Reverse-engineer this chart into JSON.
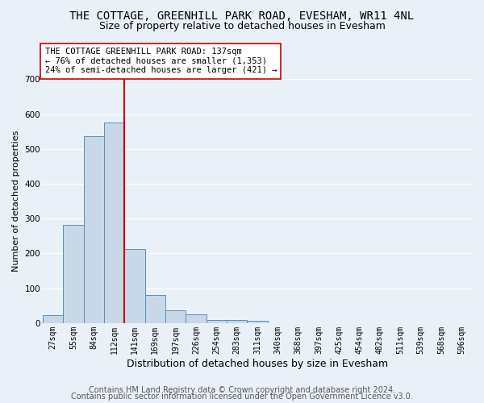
{
  "title": "THE COTTAGE, GREENHILL PARK ROAD, EVESHAM, WR11 4NL",
  "subtitle": "Size of property relative to detached houses in Evesham",
  "xlabel": "Distribution of detached houses by size in Evesham",
  "ylabel": "Number of detached properties",
  "bar_labels": [
    "27sqm",
    "55sqm",
    "84sqm",
    "112sqm",
    "141sqm",
    "169sqm",
    "197sqm",
    "226sqm",
    "254sqm",
    "283sqm",
    "311sqm",
    "340sqm",
    "368sqm",
    "397sqm",
    "425sqm",
    "454sqm",
    "482sqm",
    "511sqm",
    "539sqm",
    "568sqm",
    "596sqm"
  ],
  "bar_values": [
    24,
    283,
    537,
    577,
    212,
    81,
    36,
    25,
    10,
    10,
    7,
    0,
    0,
    0,
    0,
    0,
    0,
    0,
    0,
    0,
    0
  ],
  "bar_color": "#c8d8e8",
  "bar_edge_color": "#5b8db8",
  "highlight_line_color": "#cc0000",
  "annotation_line1": "THE COTTAGE GREENHILL PARK ROAD: 137sqm",
  "annotation_line2": "← 76% of detached houses are smaller (1,353)",
  "annotation_line3": "24% of semi-detached houses are larger (421) →",
  "annotation_box_color": "#ffffff",
  "annotation_box_edge": "#cc0000",
  "ylim": [
    0,
    700
  ],
  "yticks": [
    0,
    100,
    200,
    300,
    400,
    500,
    600,
    700
  ],
  "footer_line1": "Contains HM Land Registry data © Crown copyright and database right 2024.",
  "footer_line2": "Contains public sector information licensed under the Open Government Licence v3.0.",
  "bg_color": "#eaf0f8",
  "grid_color": "#ffffff",
  "title_fontsize": 10,
  "subtitle_fontsize": 9,
  "xlabel_fontsize": 9,
  "ylabel_fontsize": 8,
  "tick_fontsize": 7,
  "footer_fontsize": 7,
  "annotation_fontsize": 7.5
}
